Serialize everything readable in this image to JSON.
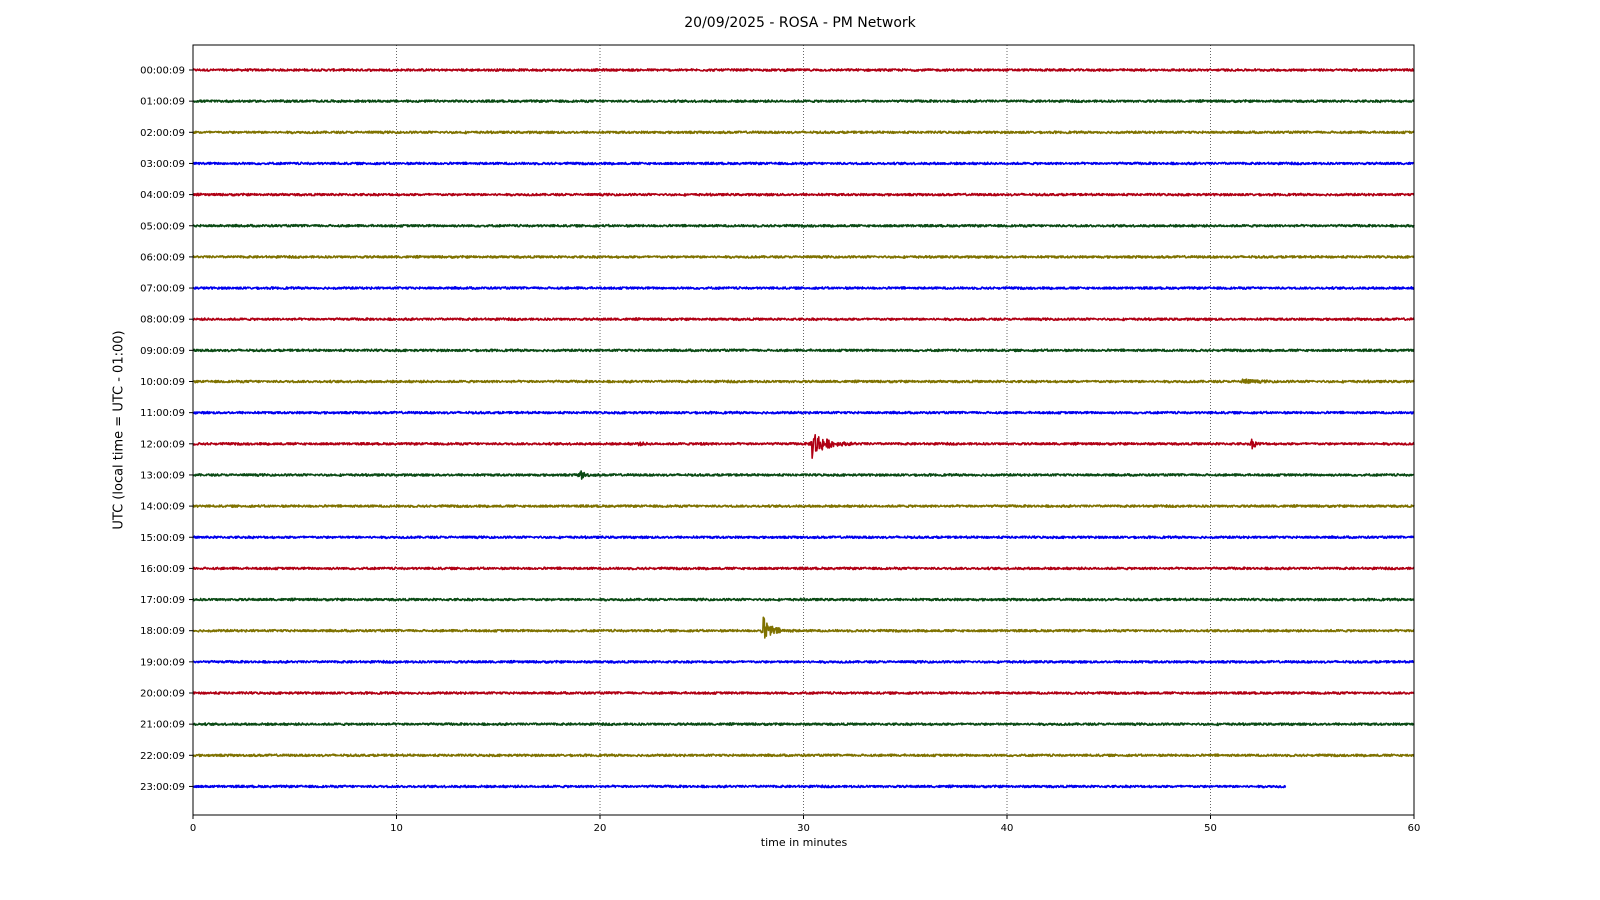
{
  "chart_data": {
    "type": "line",
    "title": "20/09/2025 - ROSA - PM Network",
    "xlabel": "time in minutes",
    "ylabel": "UTC (local time = UTC - 01:00)",
    "xlim": [
      0,
      60
    ],
    "x_ticks": [
      0,
      10,
      20,
      30,
      40,
      50,
      60
    ],
    "x_tick_labels": [
      "0",
      "10",
      "20",
      "30",
      "40",
      "50",
      "60"
    ],
    "grid": "vertical dotted lines at 10-minute ticks",
    "color_cycle": [
      "#b00014",
      "#0a4a14",
      "#7f7200",
      "#0000ee"
    ],
    "rows": [
      {
        "label": "00:00:09",
        "end_minute": 60
      },
      {
        "label": "01:00:09",
        "end_minute": 60
      },
      {
        "label": "02:00:09",
        "end_minute": 60
      },
      {
        "label": "03:00:09",
        "end_minute": 60
      },
      {
        "label": "04:00:09",
        "end_minute": 60
      },
      {
        "label": "05:00:09",
        "end_minute": 60
      },
      {
        "label": "06:00:09",
        "end_minute": 60
      },
      {
        "label": "07:00:09",
        "end_minute": 60
      },
      {
        "label": "08:00:09",
        "end_minute": 60
      },
      {
        "label": "09:00:09",
        "end_minute": 60
      },
      {
        "label": "10:00:09",
        "end_minute": 60
      },
      {
        "label": "11:00:09",
        "end_minute": 60
      },
      {
        "label": "12:00:09",
        "end_minute": 60
      },
      {
        "label": "13:00:09",
        "end_minute": 60
      },
      {
        "label": "14:00:09",
        "end_minute": 60
      },
      {
        "label": "15:00:09",
        "end_minute": 60
      },
      {
        "label": "16:00:09",
        "end_minute": 60
      },
      {
        "label": "17:00:09",
        "end_minute": 60
      },
      {
        "label": "18:00:09",
        "end_minute": 60
      },
      {
        "label": "19:00:09",
        "end_minute": 60
      },
      {
        "label": "20:00:09",
        "end_minute": 60
      },
      {
        "label": "21:00:09",
        "end_minute": 60
      },
      {
        "label": "22:00:09",
        "end_minute": 60
      },
      {
        "label": "23:00:09",
        "end_minute": 53.7
      }
    ],
    "events": [
      {
        "row": 10,
        "start_minute": 51.5,
        "peak": 0.25,
        "decay_minutes": 1.5
      },
      {
        "row": 12,
        "start_minute": 21.8,
        "peak": 0.15,
        "decay_minutes": 0.8
      },
      {
        "row": 12,
        "start_minute": 24.8,
        "peak": 0.18,
        "decay_minutes": 0.6
      },
      {
        "row": 12,
        "start_minute": 30.4,
        "peak": 1.55,
        "decay_minutes": 1.6
      },
      {
        "row": 12,
        "start_minute": 52.0,
        "peak": 0.55,
        "decay_minutes": 0.5
      },
      {
        "row": 13,
        "start_minute": 19.0,
        "peak": 0.65,
        "decay_minutes": 0.5
      },
      {
        "row": 18,
        "start_minute": 28.0,
        "peak": 1.4,
        "decay_minutes": 1.1
      }
    ]
  }
}
